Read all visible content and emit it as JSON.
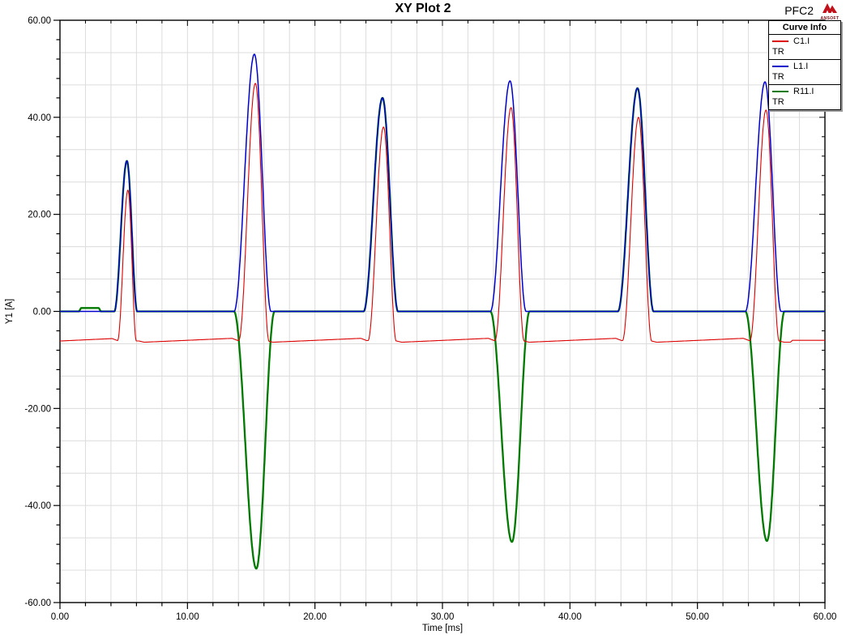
{
  "header": {
    "project": "PFC2",
    "logo_text": "ANSOFT"
  },
  "legend": {
    "title": "Curve Info",
    "entries": [
      {
        "label": "C1.I",
        "sub": "TR",
        "color": "#dd0000"
      },
      {
        "label": "L1.I",
        "sub": "TR",
        "color": "#0000cc"
      },
      {
        "label": "R11.I",
        "sub": "TR",
        "color": "#007a00"
      }
    ]
  },
  "chart_data": {
    "type": "line",
    "title": "XY Plot 2",
    "xlabel": "Time [ms]",
    "ylabel": "Y1 [A]",
    "xlim": [
      0,
      60
    ],
    "ylim": [
      -60,
      60
    ],
    "x_major_ticks": [
      0,
      10,
      20,
      30,
      40,
      50,
      60
    ],
    "x_tick_labels": [
      "0.00",
      "10.00",
      "20.00",
      "30.00",
      "40.00",
      "50.00",
      "60.00"
    ],
    "y_major_ticks": [
      60,
      40,
      20,
      0,
      -20,
      -40,
      -60
    ],
    "y_tick_labels": [
      "60.00",
      "40.00",
      "20.00",
      "0.00",
      "-20.00",
      "-40.00",
      "-60.00"
    ],
    "x_minor_step": 2,
    "y_minor_step": 4,
    "grid": {
      "on": true,
      "color": "#dcdcdc",
      "x_step": 2,
      "y_step": 6.6667
    },
    "legend_position": "top-right",
    "series": [
      {
        "name": "C1.I",
        "trace": "TR",
        "color": "#dd0000",
        "description": "capacitor current: baseline near -6 A with positive pulses every 10 ms",
        "pulse_peaks_A": [
          25,
          47,
          38,
          42,
          40,
          41.5
        ]
      },
      {
        "name": "L1.I",
        "trace": "TR",
        "color": "#0000cc",
        "description": "inductor current: zero baseline with positive pulses every 10 ms",
        "pulse_peaks_A": [
          31,
          53,
          44,
          47.5,
          46,
          47.3
        ]
      },
      {
        "name": "R11.I",
        "trace": "TR",
        "color": "#007a00",
        "description": "AC-side current: pulses alternate sign each half cycle",
        "pulse_peaks_A": [
          31,
          -53,
          44,
          -47.5,
          46,
          -47.3
        ]
      }
    ],
    "pulses": [
      {
        "t_center": 5.25,
        "width": 1.8,
        "L1_peak": 31,
        "C1_peak": 25,
        "R11_sign": 1
      },
      {
        "t_center": 15.25,
        "width": 2.9,
        "L1_peak": 53,
        "C1_peak": 47,
        "R11_sign": -1
      },
      {
        "t_center": 25.3,
        "width": 2.7,
        "L1_peak": 44,
        "C1_peak": 38,
        "R11_sign": 1
      },
      {
        "t_center": 35.3,
        "width": 2.8,
        "L1_peak": 47.5,
        "C1_peak": 42,
        "R11_sign": -1
      },
      {
        "t_center": 45.3,
        "width": 2.8,
        "L1_peak": 46,
        "C1_peak": 40,
        "R11_sign": 1
      },
      {
        "t_center": 55.3,
        "width": 2.8,
        "L1_peak": 47.3,
        "C1_peak": 41.5,
        "R11_sign": -1
      }
    ],
    "C1_baseline_anchors": [
      [
        0,
        -6.1
      ],
      [
        4.1,
        -5.6
      ],
      [
        4.5,
        -6.0
      ],
      [
        6.2,
        -6.1
      ],
      [
        6.6,
        -6.35
      ],
      [
        13.5,
        -5.55
      ],
      [
        13.95,
        -6.0
      ],
      [
        16.3,
        -6.1
      ],
      [
        16.7,
        -6.35
      ],
      [
        23.6,
        -5.55
      ],
      [
        24.05,
        -6.0
      ],
      [
        26.4,
        -6.1
      ],
      [
        26.8,
        -6.35
      ],
      [
        33.6,
        -5.55
      ],
      [
        34.05,
        -6.0
      ],
      [
        36.4,
        -6.1
      ],
      [
        36.8,
        -6.35
      ],
      [
        43.6,
        -5.55
      ],
      [
        44.05,
        -6.0
      ],
      [
        46.4,
        -6.1
      ],
      [
        46.8,
        -6.35
      ],
      [
        53.6,
        -5.55
      ],
      [
        54.05,
        -6.0
      ],
      [
        56.4,
        -6.1
      ],
      [
        56.8,
        -6.35
      ],
      [
        57.3,
        -6.35
      ],
      [
        57.45,
        -5.95
      ],
      [
        60,
        -5.95
      ]
    ],
    "R11_bump": {
      "t_start": 1.5,
      "t_end": 3.2,
      "height": 0.7
    }
  }
}
